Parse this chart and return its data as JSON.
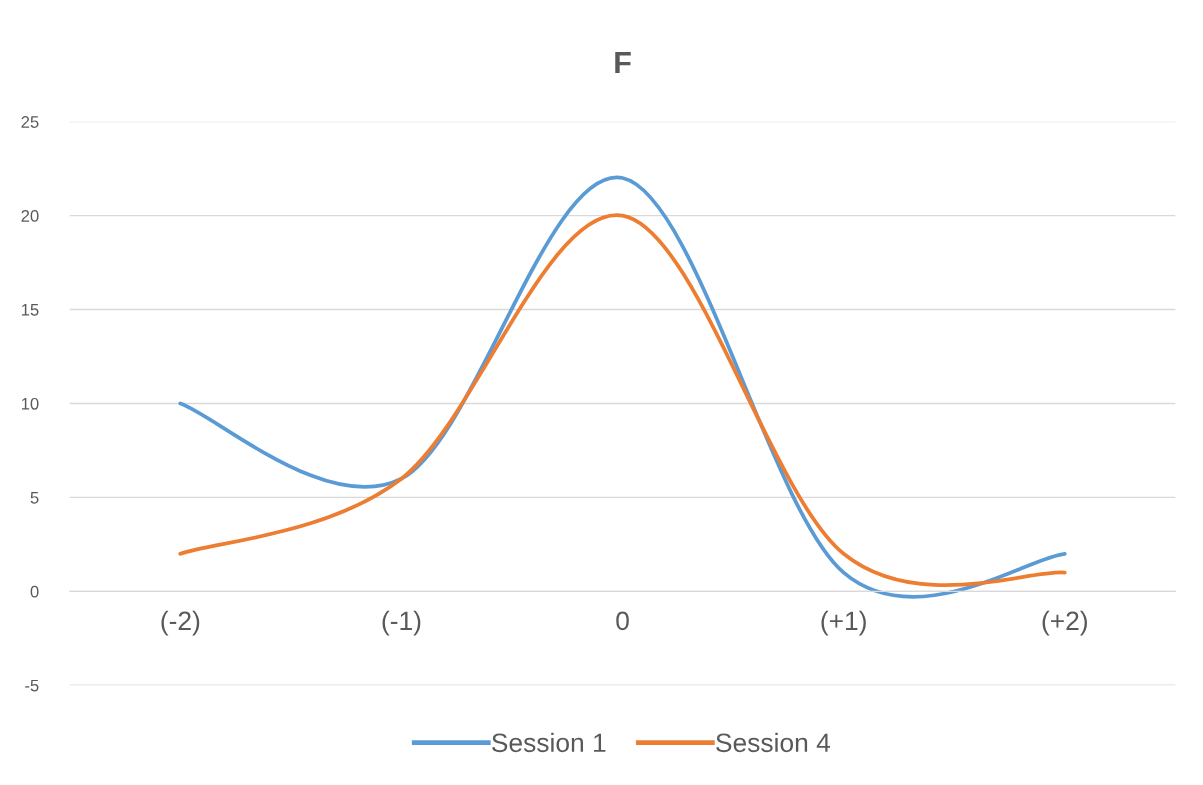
{
  "chart_data": {
    "type": "line",
    "title": "F",
    "categories": [
      "(-2)",
      "(-1)",
      "0",
      "(+1)",
      "(+2)"
    ],
    "series": [
      {
        "name": "Session 1",
        "color": "#5b9bd5",
        "values": [
          10,
          6,
          22,
          1,
          2
        ]
      },
      {
        "name": "Session 4",
        "color": "#ed7d31",
        "values": [
          2,
          6,
          20,
          2,
          1
        ]
      }
    ],
    "ylim": [
      -5,
      25
    ],
    "yticks": [
      -5,
      0,
      5,
      10,
      15,
      20,
      25
    ],
    "grid": "y",
    "legend": "bottom",
    "line_style": "solid"
  }
}
